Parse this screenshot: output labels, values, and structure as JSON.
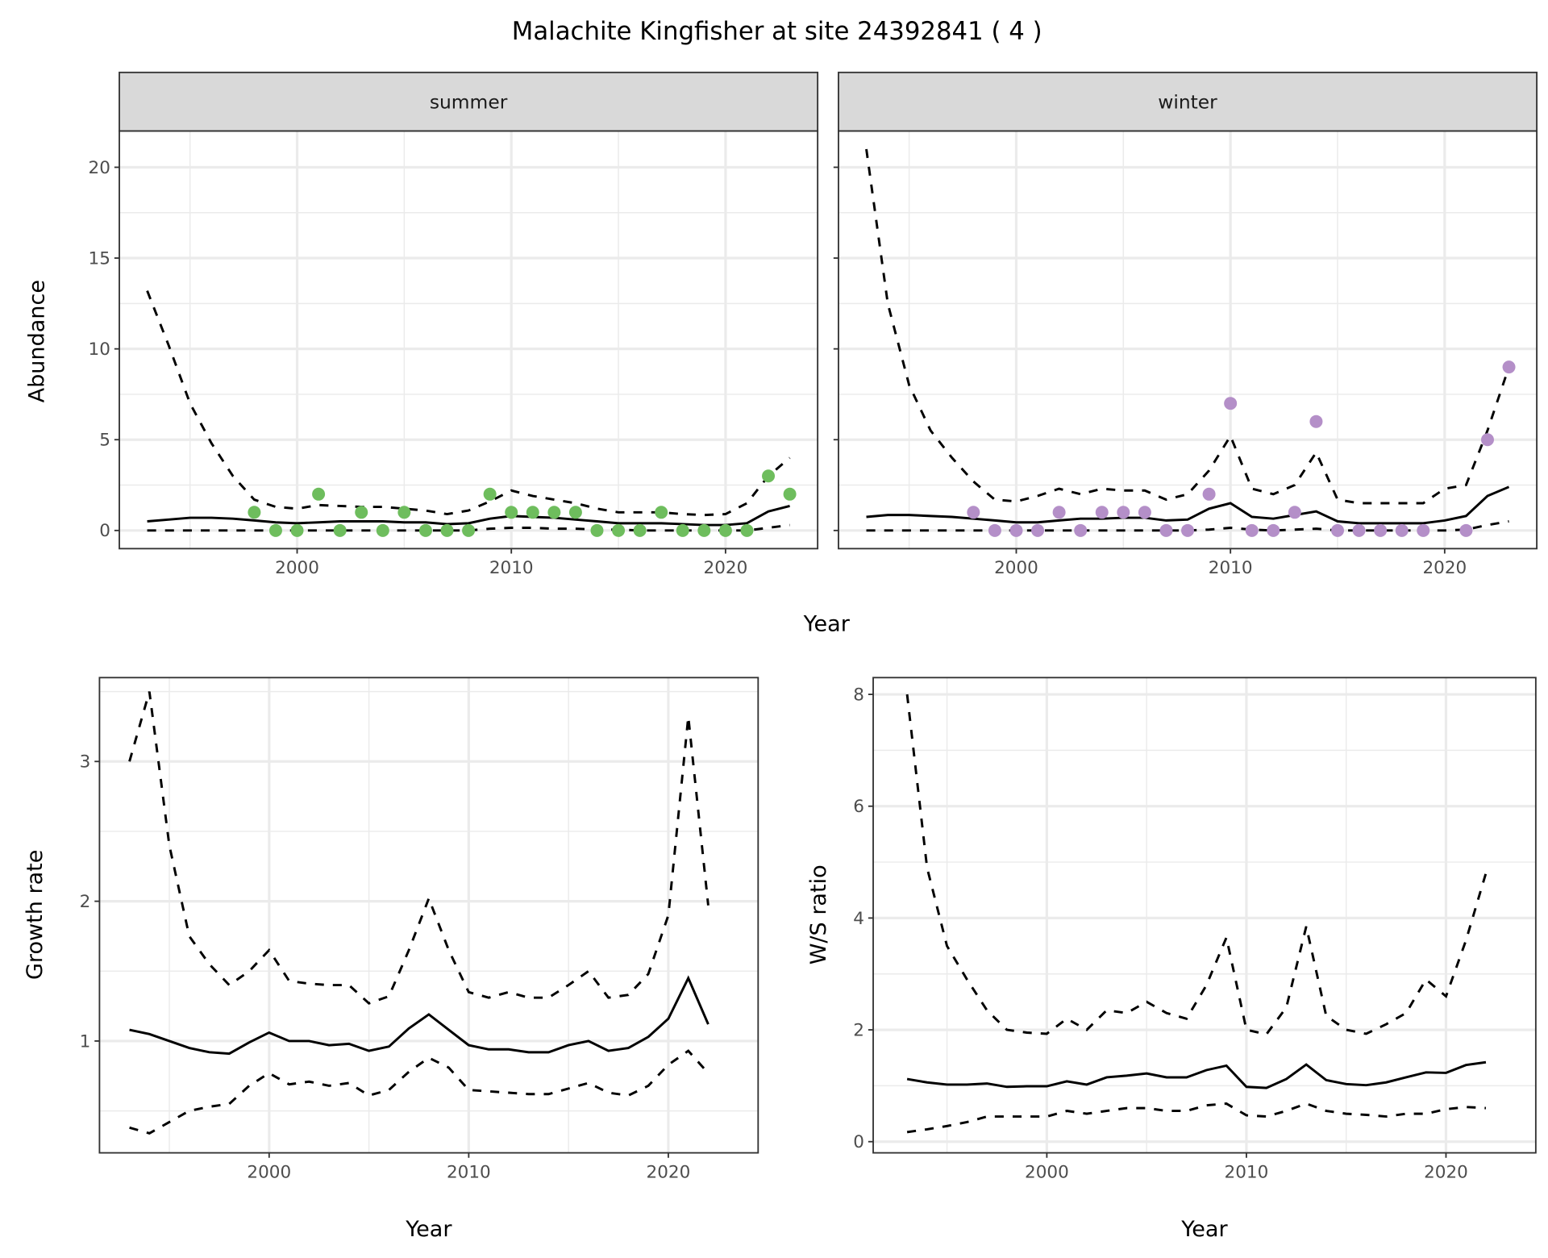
{
  "title": "Malachite Kingfisher at site 24392841 ( 4 )",
  "colors": {
    "summer": "#6ebd5d",
    "winter": "#b48fc8",
    "line": "#000000",
    "grid": "#ebebeb",
    "strip": "#d9d9d9"
  },
  "chart_data": [
    {
      "type": "line",
      "panel": "summer",
      "strip_label": "summer",
      "xlabel": "Year",
      "ylabel": "Abundance",
      "xlim": [
        1991.7,
        2024.3
      ],
      "ylim": [
        -1.0,
        22.0
      ],
      "xticks": [
        2000,
        2010,
        2020
      ],
      "yticks": [
        0,
        5,
        10,
        15,
        20
      ],
      "x": [
        1993,
        1994,
        1995,
        1996,
        1997,
        1998,
        1999,
        2000,
        2001,
        2002,
        2003,
        2004,
        2005,
        2006,
        2007,
        2008,
        2009,
        2010,
        2011,
        2012,
        2013,
        2014,
        2015,
        2016,
        2017,
        2018,
        2019,
        2020,
        2021,
        2022,
        2023
      ],
      "series": [
        {
          "name": "mean",
          "style": "solid",
          "values": [
            0.5,
            0.6,
            0.7,
            0.7,
            0.65,
            0.55,
            0.45,
            0.4,
            0.45,
            0.5,
            0.5,
            0.5,
            0.45,
            0.45,
            0.35,
            0.4,
            0.65,
            0.8,
            0.75,
            0.7,
            0.6,
            0.5,
            0.4,
            0.4,
            0.4,
            0.35,
            0.3,
            0.3,
            0.4,
            1.05,
            1.35
          ]
        },
        {
          "name": "upper",
          "style": "dashed",
          "values": [
            13.2,
            10.2,
            7,
            4.8,
            3,
            1.7,
            1.3,
            1.2,
            1.4,
            1.35,
            1.3,
            1.3,
            1.2,
            1.1,
            0.9,
            1.1,
            1.6,
            2.2,
            1.9,
            1.7,
            1.5,
            1.2,
            1.0,
            1.0,
            1.0,
            0.9,
            0.85,
            0.9,
            1.5,
            3,
            4
          ]
        },
        {
          "name": "lower",
          "style": "dashed",
          "values": [
            0,
            0,
            0,
            0,
            0,
            0,
            0,
            0,
            0,
            0,
            0,
            0,
            0,
            0,
            0,
            0,
            0.1,
            0.15,
            0.15,
            0.1,
            0.1,
            0.05,
            0.05,
            0,
            0,
            0,
            0,
            0,
            0,
            0.15,
            0.3
          ]
        }
      ],
      "points": {
        "x": [
          1998,
          1999,
          2000,
          2001,
          2002,
          2003,
          2004,
          2005,
          2006,
          2007,
          2008,
          2009,
          2010,
          2011,
          2012,
          2013,
          2014,
          2015,
          2016,
          2017,
          2018,
          2019,
          2020,
          2021,
          2022,
          2023
        ],
        "y": [
          1,
          0,
          0,
          2,
          0,
          1,
          0,
          1,
          0,
          0,
          0,
          2,
          1,
          1,
          1,
          1,
          0,
          0,
          0,
          1,
          0,
          0,
          0,
          0,
          3,
          2
        ]
      }
    },
    {
      "type": "line",
      "panel": "winter",
      "strip_label": "winter",
      "xlabel": "Year",
      "ylabel": "Abundance",
      "xlim": [
        1991.7,
        2024.3
      ],
      "ylim": [
        -1.0,
        22.0
      ],
      "xticks": [
        2000,
        2010,
        2020
      ],
      "yticks": [
        0,
        5,
        10,
        15,
        20
      ],
      "x": [
        1993,
        1994,
        1995,
        1996,
        1997,
        1998,
        1999,
        2000,
        2001,
        2002,
        2003,
        2004,
        2005,
        2006,
        2007,
        2008,
        2009,
        2010,
        2011,
        2012,
        2013,
        2014,
        2015,
        2016,
        2017,
        2018,
        2019,
        2020,
        2021,
        2022,
        2023
      ],
      "series": [
        {
          "name": "mean",
          "style": "solid",
          "values": [
            0.75,
            0.85,
            0.85,
            0.8,
            0.75,
            0.65,
            0.55,
            0.45,
            0.45,
            0.55,
            0.65,
            0.65,
            0.7,
            0.7,
            0.55,
            0.6,
            1.2,
            1.5,
            0.75,
            0.65,
            0.85,
            1.05,
            0.5,
            0.4,
            0.4,
            0.4,
            0.4,
            0.55,
            0.8,
            1.9,
            2.4
          ]
        },
        {
          "name": "upper",
          "style": "dashed",
          "values": [
            21,
            12.5,
            8,
            5.5,
            4,
            2.7,
            1.7,
            1.6,
            1.9,
            2.3,
            2.0,
            2.3,
            2.2,
            2.2,
            1.7,
            2.0,
            3.3,
            5.2,
            2.3,
            2.0,
            2.5,
            4.3,
            1.7,
            1.5,
            1.5,
            1.5,
            1.5,
            2.3,
            2.5,
            5.5,
            9
          ]
        },
        {
          "name": "lower",
          "style": "dashed",
          "values": [
            0,
            0,
            0,
            0,
            0,
            0,
            0,
            0,
            0,
            0,
            0,
            0,
            0,
            0,
            0,
            0,
            0.05,
            0.15,
            0.05,
            0,
            0.05,
            0.1,
            0,
            0,
            0,
            0,
            0,
            0,
            0.05,
            0.3,
            0.5
          ]
        }
      ],
      "points": {
        "x": [
          1998,
          1999,
          2000,
          2001,
          2002,
          2003,
          2004,
          2005,
          2006,
          2007,
          2008,
          2009,
          2010,
          2011,
          2012,
          2013,
          2014,
          2015,
          2016,
          2017,
          2018,
          2019,
          2021,
          2022,
          2023
        ],
        "y": [
          1,
          0,
          0,
          0,
          1,
          0,
          1,
          1,
          1,
          0,
          0,
          2,
          7,
          0,
          0,
          1,
          6,
          0,
          0,
          0,
          0,
          0,
          0,
          5,
          9
        ]
      }
    },
    {
      "type": "line",
      "panel": "growth",
      "xlabel": "Year",
      "ylabel": "Growth rate",
      "xlim": [
        1991.5,
        2024.5
      ],
      "ylim": [
        0.2,
        3.6
      ],
      "xticks": [
        2000,
        2010,
        2020
      ],
      "yticks": [
        1,
        2,
        3
      ],
      "x": [
        1993,
        1994,
        1995,
        1996,
        1997,
        1998,
        1999,
        2000,
        2001,
        2002,
        2003,
        2004,
        2005,
        2006,
        2007,
        2008,
        2009,
        2010,
        2011,
        2012,
        2013,
        2014,
        2015,
        2016,
        2017,
        2018,
        2019,
        2020,
        2021,
        2022
      ],
      "series": [
        {
          "name": "mean",
          "style": "solid",
          "values": [
            1.08,
            1.05,
            1.0,
            0.95,
            0.92,
            0.91,
            0.99,
            1.06,
            1.0,
            1.0,
            0.97,
            0.98,
            0.93,
            0.96,
            1.09,
            1.19,
            1.08,
            0.97,
            0.94,
            0.94,
            0.92,
            0.92,
            0.97,
            1.0,
            0.93,
            0.95,
            1.03,
            1.16,
            1.45,
            1.12
          ]
        },
        {
          "name": "upper",
          "style": "dashed",
          "values": [
            3.0,
            3.5,
            2.4,
            1.75,
            1.55,
            1.4,
            1.5,
            1.65,
            1.43,
            1.41,
            1.4,
            1.4,
            1.27,
            1.32,
            1.65,
            2.02,
            1.65,
            1.35,
            1.31,
            1.35,
            1.31,
            1.31,
            1.4,
            1.5,
            1.31,
            1.33,
            1.48,
            1.9,
            3.32,
            1.97
          ]
        },
        {
          "name": "lower",
          "style": "dashed",
          "values": [
            0.38,
            0.34,
            0.42,
            0.5,
            0.53,
            0.55,
            0.68,
            0.77,
            0.69,
            0.71,
            0.68,
            0.7,
            0.61,
            0.65,
            0.78,
            0.88,
            0.81,
            0.65,
            0.64,
            0.63,
            0.62,
            0.62,
            0.66,
            0.7,
            0.63,
            0.61,
            0.68,
            0.83,
            0.93,
            0.77
          ]
        }
      ]
    },
    {
      "type": "line",
      "panel": "ws",
      "xlabel": "Year",
      "ylabel": "W/S ratio",
      "xlim": [
        1991.3,
        2024.5
      ],
      "ylim": [
        -0.2,
        8.3
      ],
      "xticks": [
        2000,
        2010,
        2020
      ],
      "yticks": [
        0,
        2,
        4,
        6,
        8
      ],
      "x": [
        1993,
        1994,
        1995,
        1996,
        1997,
        1998,
        1999,
        2000,
        2001,
        2002,
        2003,
        2004,
        2005,
        2006,
        2007,
        2008,
        2009,
        2010,
        2011,
        2012,
        2013,
        2014,
        2015,
        2016,
        2017,
        2018,
        2019,
        2020,
        2021,
        2022
      ],
      "series": [
        {
          "name": "mean",
          "style": "solid",
          "values": [
            1.12,
            1.06,
            1.02,
            1.02,
            1.04,
            0.98,
            0.99,
            0.99,
            1.08,
            1.02,
            1.15,
            1.18,
            1.22,
            1.15,
            1.15,
            1.28,
            1.36,
            0.98,
            0.96,
            1.12,
            1.38,
            1.1,
            1.03,
            1.01,
            1.06,
            1.15,
            1.24,
            1.23,
            1.37,
            1.42
          ]
        },
        {
          "name": "upper",
          "style": "dashed",
          "values": [
            8.0,
            4.9,
            3.5,
            2.9,
            2.35,
            2.0,
            1.95,
            1.93,
            2.2,
            2.0,
            2.35,
            2.3,
            2.5,
            2.3,
            2.2,
            2.8,
            3.65,
            2.0,
            1.92,
            2.4,
            3.85,
            2.25,
            2.0,
            1.93,
            2.1,
            2.3,
            2.9,
            2.6,
            3.6,
            4.8
          ]
        },
        {
          "name": "lower",
          "style": "dashed",
          "values": [
            0.17,
            0.22,
            0.28,
            0.35,
            0.45,
            0.45,
            0.45,
            0.45,
            0.55,
            0.5,
            0.55,
            0.6,
            0.6,
            0.55,
            0.55,
            0.65,
            0.68,
            0.47,
            0.45,
            0.55,
            0.68,
            0.55,
            0.5,
            0.48,
            0.45,
            0.5,
            0.5,
            0.58,
            0.62,
            0.6
          ]
        }
      ]
    }
  ]
}
